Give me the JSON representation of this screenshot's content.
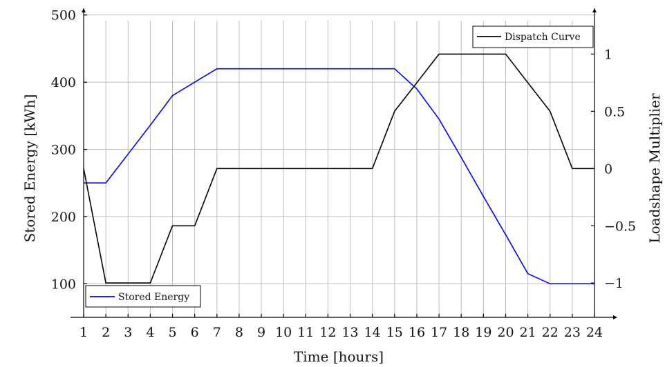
{
  "chart_data": {
    "type": "line",
    "xlabel": "Time [hours]",
    "ylabel_left": "Stored Energy [kWh]",
    "ylabel_right": "Loadshape Multiplier",
    "x": [
      1,
      2,
      3,
      4,
      5,
      6,
      7,
      8,
      9,
      10,
      11,
      12,
      13,
      14,
      15,
      16,
      17,
      18,
      19,
      20,
      21,
      22,
      23,
      24
    ],
    "x_ticks": [
      "1",
      "2",
      "3",
      "4",
      "5",
      "6",
      "7",
      "8",
      "9",
      "10",
      "11",
      "12",
      "13",
      "14",
      "15",
      "16",
      "17",
      "18",
      "19",
      "20",
      "21",
      "22",
      "23",
      "24"
    ],
    "xlim": [
      1,
      24
    ],
    "ylim_left": [
      50,
      510
    ],
    "ylim_right": [
      -1.3,
      1.4
    ],
    "left_ticks": [
      100,
      200,
      300,
      400,
      500
    ],
    "left_tick_labels": [
      "100",
      "200",
      "300",
      "400",
      "500"
    ],
    "right_ticks": [
      -1,
      -0.5,
      0,
      0.5,
      1
    ],
    "right_tick_labels": [
      "−1",
      "−0.5",
      "0",
      "0.5",
      "1"
    ],
    "grid": true,
    "series": [
      {
        "name": "Stored Energy",
        "axis": "left",
        "color": "#0000ff",
        "legend_position": "bottom-left",
        "values": [
          250,
          250,
          293,
          336,
          380,
          400,
          420,
          420,
          420,
          420,
          420,
          420,
          420,
          420,
          420,
          390,
          345,
          288,
          230,
          173,
          115,
          100,
          100,
          100
        ]
      },
      {
        "name": "Dispatch Curve",
        "axis": "right",
        "color": "#000000",
        "legend_position": "top-right",
        "values": [
          0,
          -1,
          -1,
          -1,
          -0.5,
          -0.5,
          0,
          0,
          0,
          0,
          0,
          0,
          0,
          0,
          0.5,
          0.75,
          1,
          1,
          1,
          1,
          0.75,
          0.5,
          0,
          0
        ]
      }
    ]
  }
}
